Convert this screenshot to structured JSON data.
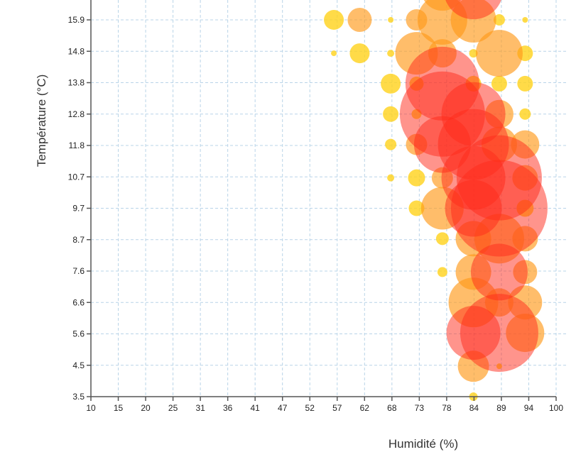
{
  "chart_data": {
    "type": "scatter",
    "variant": "bubble",
    "title": "",
    "xlabel": "Humidité (%)",
    "ylabel": "Température (°C)",
    "xlim": [
      10,
      100
    ],
    "ylim": [
      3.5,
      16.9
    ],
    "x_ticks": [
      "10",
      "15",
      "20",
      "25",
      "31",
      "36",
      "41",
      "47",
      "52",
      "57",
      "62",
      "68",
      "73",
      "78",
      "84",
      "89",
      "94",
      "100"
    ],
    "y_ticks": [
      "3.5",
      "4.5",
      "5.6",
      "6.6",
      "7.6",
      "8.7",
      "9.7",
      "10.7",
      "11.8",
      "12.8",
      "13.8",
      "14.8",
      "15.9"
    ],
    "grid": true,
    "colors": {
      "low": "#ffd21a",
      "mid": "#ff9a1a",
      "high": "#ff2a1a",
      "grid": "#b9d4e8",
      "axis": "#555555"
    },
    "points": [
      {
        "x": 57,
        "y": 15.9,
        "size": 14
      },
      {
        "x": 62,
        "y": 15.9,
        "size": 17
      },
      {
        "x": 68,
        "y": 15.9,
        "size": 4
      },
      {
        "x": 73,
        "y": 15.9,
        "size": 15
      },
      {
        "x": 78,
        "y": 15.9,
        "size": 35
      },
      {
        "x": 84,
        "y": 15.9,
        "size": 32
      },
      {
        "x": 89,
        "y": 15.9,
        "size": 8
      },
      {
        "x": 94,
        "y": 15.9,
        "size": 4
      },
      {
        "x": 78,
        "y": 16.9,
        "size": 30
      },
      {
        "x": 84,
        "y": 16.9,
        "size": 42
      },
      {
        "x": 57,
        "y": 14.8,
        "size": 4
      },
      {
        "x": 62,
        "y": 14.8,
        "size": 14
      },
      {
        "x": 68,
        "y": 14.8,
        "size": 5
      },
      {
        "x": 73,
        "y": 14.8,
        "size": 30
      },
      {
        "x": 78,
        "y": 14.8,
        "size": 20
      },
      {
        "x": 84,
        "y": 14.8,
        "size": 6
      },
      {
        "x": 89,
        "y": 14.8,
        "size": 33
      },
      {
        "x": 94,
        "y": 14.8,
        "size": 11
      },
      {
        "x": 68,
        "y": 13.8,
        "size": 14
      },
      {
        "x": 73,
        "y": 13.8,
        "size": 10
      },
      {
        "x": 78,
        "y": 13.8,
        "size": 52
      },
      {
        "x": 84,
        "y": 13.8,
        "size": 11
      },
      {
        "x": 89,
        "y": 13.8,
        "size": 11
      },
      {
        "x": 94,
        "y": 13.8,
        "size": 11
      },
      {
        "x": 68,
        "y": 12.8,
        "size": 11
      },
      {
        "x": 73,
        "y": 12.8,
        "size": 7
      },
      {
        "x": 78,
        "y": 12.8,
        "size": 60
      },
      {
        "x": 84,
        "y": 12.8,
        "size": 45
      },
      {
        "x": 89,
        "y": 12.8,
        "size": 20
      },
      {
        "x": 94,
        "y": 12.8,
        "size": 8
      },
      {
        "x": 68,
        "y": 11.8,
        "size": 8
      },
      {
        "x": 73,
        "y": 11.8,
        "size": 15
      },
      {
        "x": 78,
        "y": 11.8,
        "size": 40
      },
      {
        "x": 84,
        "y": 11.8,
        "size": 50
      },
      {
        "x": 89,
        "y": 11.8,
        "size": 25
      },
      {
        "x": 94,
        "y": 11.8,
        "size": 20
      },
      {
        "x": 68,
        "y": 10.7,
        "size": 5
      },
      {
        "x": 73,
        "y": 10.7,
        "size": 12
      },
      {
        "x": 78,
        "y": 10.7,
        "size": 15
      },
      {
        "x": 84,
        "y": 10.7,
        "size": 45
      },
      {
        "x": 89,
        "y": 10.7,
        "size": 60
      },
      {
        "x": 94,
        "y": 10.7,
        "size": 18
      },
      {
        "x": 73,
        "y": 9.7,
        "size": 11
      },
      {
        "x": 78,
        "y": 9.7,
        "size": 30
      },
      {
        "x": 84,
        "y": 9.7,
        "size": 40
      },
      {
        "x": 89,
        "y": 9.7,
        "size": 68
      },
      {
        "x": 94,
        "y": 9.7,
        "size": 12
      },
      {
        "x": 78,
        "y": 8.7,
        "size": 9
      },
      {
        "x": 84,
        "y": 8.7,
        "size": 25
      },
      {
        "x": 89,
        "y": 8.7,
        "size": 35
      },
      {
        "x": 94,
        "y": 8.7,
        "size": 18
      },
      {
        "x": 78,
        "y": 7.6,
        "size": 7
      },
      {
        "x": 84,
        "y": 7.6,
        "size": 25
      },
      {
        "x": 89,
        "y": 7.6,
        "size": 40
      },
      {
        "x": 94,
        "y": 7.6,
        "size": 17
      },
      {
        "x": 84,
        "y": 6.6,
        "size": 35
      },
      {
        "x": 89,
        "y": 6.6,
        "size": 20
      },
      {
        "x": 94,
        "y": 6.6,
        "size": 24
      },
      {
        "x": 84,
        "y": 5.6,
        "size": 38
      },
      {
        "x": 89,
        "y": 5.6,
        "size": 55
      },
      {
        "x": 94,
        "y": 5.6,
        "size": 27
      },
      {
        "x": 84,
        "y": 4.5,
        "size": 22
      },
      {
        "x": 89,
        "y": 4.5,
        "size": 4
      },
      {
        "x": 84,
        "y": 3.5,
        "size": 6
      }
    ]
  }
}
